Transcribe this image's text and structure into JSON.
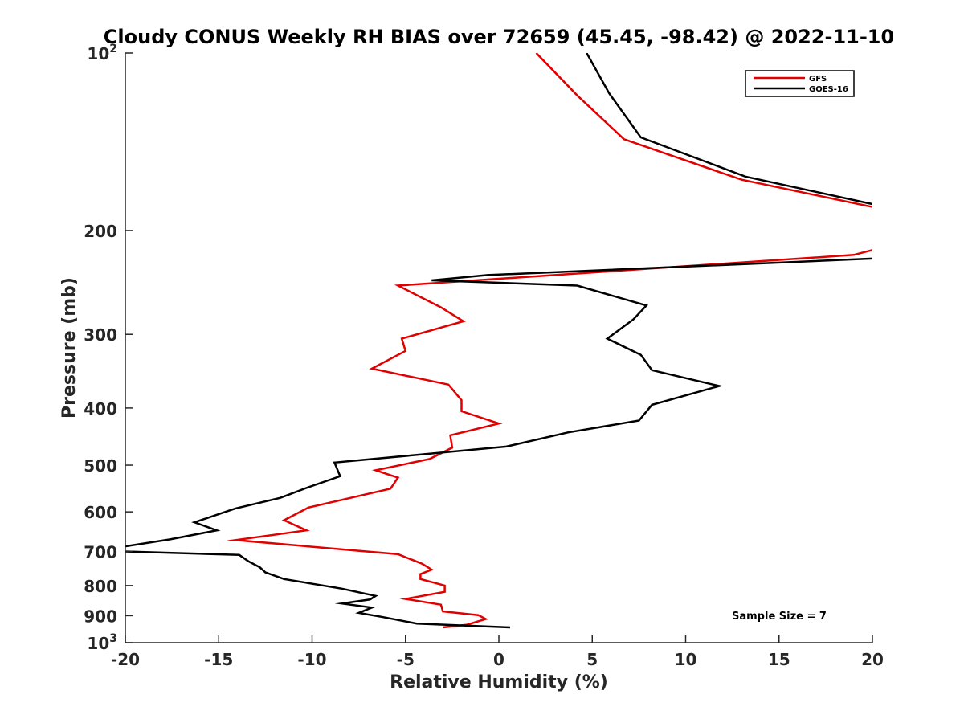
{
  "chart_data": {
    "type": "line",
    "title": "Cloudy CONUS Weekly RH BIAS over 72659 (45.45, -98.42) @ 2022-11-10",
    "xlabel": "Relative Humidity (%)",
    "ylabel": "Pressure (mb)",
    "xlim": [
      -20,
      20
    ],
    "ylim": [
      100,
      1000
    ],
    "yscale": "log",
    "y_reversed": true,
    "grid": false,
    "legend_position": "top-right",
    "x_ticks": [
      "-20",
      "-15",
      "-10",
      "-5",
      "0",
      "5",
      "10",
      "15",
      "20"
    ],
    "y_ticks": [
      {
        "value": 100,
        "base": "10",
        "exp": "2"
      },
      {
        "value": 200,
        "label": "200"
      },
      {
        "value": 300,
        "label": "300"
      },
      {
        "value": 400,
        "label": "400"
      },
      {
        "value": 500,
        "label": "500"
      },
      {
        "value": 600,
        "label": "600"
      },
      {
        "value": 700,
        "label": "700"
      },
      {
        "value": 800,
        "label": "800"
      },
      {
        "value": 900,
        "label": "900"
      },
      {
        "value": 1000,
        "base": "10",
        "exp": "3"
      }
    ],
    "series": [
      {
        "name": "GFS",
        "color": "#e00000",
        "points": [
          [
            2.0,
            100
          ],
          [
            4.2,
            118
          ],
          [
            6.7,
            140
          ],
          [
            13.0,
            164
          ],
          [
            20.2,
            183
          ],
          [
            20.2,
            215
          ],
          [
            19.0,
            220
          ],
          [
            -5.4,
            248
          ],
          [
            -3.1,
            270
          ],
          [
            -1.9,
            285
          ],
          [
            -5.2,
            305
          ],
          [
            -5.0,
            320
          ],
          [
            -6.8,
            343
          ],
          [
            -2.7,
            365
          ],
          [
            -2.0,
            388
          ],
          [
            -2.0,
            405
          ],
          [
            0.0,
            425
          ],
          [
            -2.6,
            445
          ],
          [
            -2.5,
            467
          ],
          [
            -3.7,
            488
          ],
          [
            -6.6,
            510
          ],
          [
            -5.4,
            525
          ],
          [
            -5.8,
            548
          ],
          [
            -10.2,
            590
          ],
          [
            -11.5,
            620
          ],
          [
            -10.3,
            645
          ],
          [
            -14.1,
            670
          ],
          [
            -5.4,
            708
          ],
          [
            -4.1,
            735
          ],
          [
            -3.6,
            752
          ],
          [
            -4.2,
            765
          ],
          [
            -4.2,
            780
          ],
          [
            -2.9,
            800
          ],
          [
            -2.9,
            820
          ],
          [
            -5.0,
            843
          ],
          [
            -3.1,
            862
          ],
          [
            -3.0,
            885
          ],
          [
            -1.1,
            898
          ],
          [
            -0.7,
            912
          ],
          [
            -1.7,
            932
          ],
          [
            -3.0,
            942
          ]
        ]
      },
      {
        "name": "GOES-16",
        "color": "#000000",
        "points": [
          [
            4.7,
            100
          ],
          [
            5.9,
            117
          ],
          [
            7.6,
            139
          ],
          [
            13.2,
            162
          ],
          [
            20.2,
            181
          ],
          [
            20.2,
            223
          ],
          [
            -0.6,
            238
          ],
          [
            -3.6,
            243
          ],
          [
            4.2,
            248
          ],
          [
            7.9,
            268
          ],
          [
            7.2,
            283
          ],
          [
            5.8,
            305
          ],
          [
            7.6,
            325
          ],
          [
            8.2,
            345
          ],
          [
            11.8,
            367
          ],
          [
            8.2,
            395
          ],
          [
            7.5,
            420
          ],
          [
            3.7,
            440
          ],
          [
            0.4,
            465
          ],
          [
            -8.8,
            495
          ],
          [
            -8.5,
            522
          ],
          [
            -10.2,
            545
          ],
          [
            -11.7,
            568
          ],
          [
            -14.1,
            592
          ],
          [
            -16.3,
            625
          ],
          [
            -15.1,
            645
          ],
          [
            -17.6,
            668
          ],
          [
            -20.2,
            688
          ],
          [
            -20.2,
            700
          ],
          [
            -13.9,
            710
          ],
          [
            -13.4,
            728
          ],
          [
            -12.8,
            745
          ],
          [
            -12.5,
            760
          ],
          [
            -11.5,
            780
          ],
          [
            -8.4,
            810
          ],
          [
            -6.6,
            833
          ],
          [
            -6.9,
            845
          ],
          [
            -8.4,
            858
          ],
          [
            -6.8,
            872
          ],
          [
            -7.5,
            890
          ],
          [
            -6.2,
            905
          ],
          [
            -4.4,
            928
          ],
          [
            0.6,
            942
          ]
        ]
      }
    ],
    "annotation": "Sample Size = 7"
  }
}
